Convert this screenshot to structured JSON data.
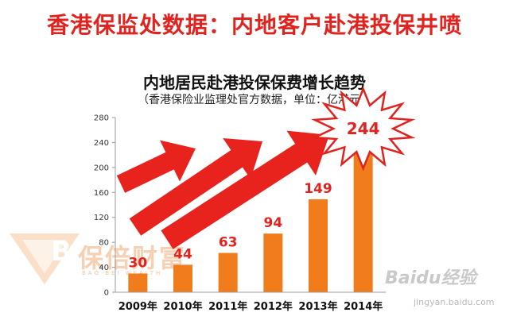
{
  "headline": "香港保监处数据：内地客户赴港投保井喷",
  "watermark": {
    "brand": "保倍财富",
    "brand_en": "BAO BEI WEALTH",
    "letter": "B"
  },
  "baidu": {
    "name": "Baidu经验",
    "url": "jingyan.baidu.com"
  },
  "colors": {
    "bar": "#f07c1c",
    "label": "#e0231e",
    "arrow": "#e8231e",
    "headline": "#e0231e"
  },
  "chart_data": {
    "type": "bar",
    "title": "内地居民赴港投保保费增长趋势",
    "subtitle": "（香港保险业监理处官方数据，单位：亿港元）",
    "categories": [
      "2009年",
      "2010年",
      "2011年",
      "2012年",
      "2013年",
      "2014年"
    ],
    "values": [
      30,
      44,
      63,
      94,
      149,
      244
    ],
    "data_labels": [
      "30",
      "44",
      "63",
      "94",
      "149",
      "244"
    ],
    "ylim": [
      0,
      280
    ],
    "yticks": [
      0,
      40,
      80,
      120,
      160,
      200,
      240,
      280
    ],
    "grid": false,
    "xlabel": "",
    "ylabel": ""
  }
}
